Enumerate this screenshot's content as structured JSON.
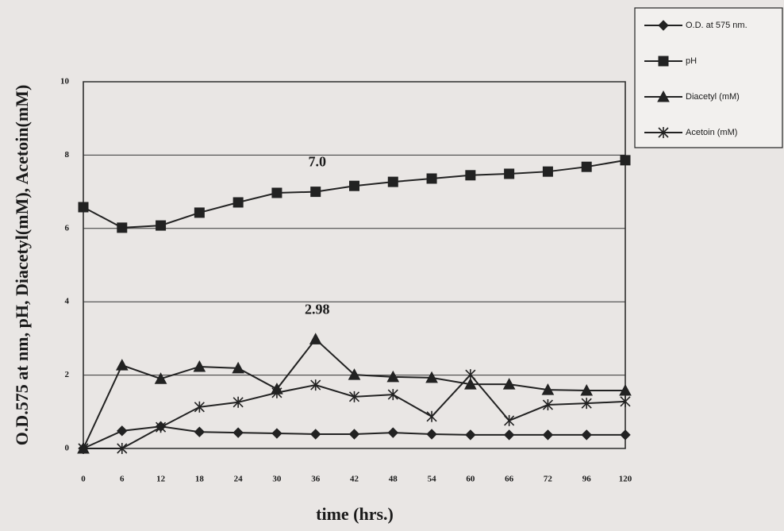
{
  "chart_data": {
    "type": "line",
    "x_label": "time (hrs.)",
    "y_label": "O.D.575 at nm, pH, Diacetyl(mM), Acetoin(mM)",
    "categories": [
      "0",
      "6",
      "12",
      "18",
      "24",
      "30",
      "36",
      "42",
      "48",
      "54",
      "60",
      "66",
      "72",
      "96",
      "120"
    ],
    "ylim": [
      0,
      10
    ],
    "yticks": [
      0,
      2,
      4,
      6,
      8,
      10
    ],
    "grid": true,
    "series": [
      {
        "name": "O.D. at 575 nm.",
        "color": "#222222",
        "marker": "diamond",
        "values": [
          0,
          0.48,
          0.6,
          0.45,
          0.43,
          0.41,
          0.39,
          0.39,
          0.43,
          0.39,
          0.37,
          0.37,
          0.37,
          0.37,
          0.37
        ]
      },
      {
        "name": "pH",
        "color": "#222222",
        "marker": "square",
        "values": [
          6.58,
          6.02,
          6.08,
          6.43,
          6.71,
          6.97,
          7.0,
          7.16,
          7.27,
          7.36,
          7.45,
          7.49,
          7.55,
          7.68,
          7.86
        ],
        "value_labels": [
          null,
          null,
          null,
          null,
          null,
          null,
          "7.0",
          null,
          null,
          null,
          null,
          null,
          null,
          null,
          null
        ]
      },
      {
        "name": "Diacetyl (mM)",
        "color": "#222222",
        "marker": "triangle",
        "values": [
          0,
          2.27,
          1.9,
          2.23,
          2.19,
          1.62,
          2.98,
          2.01,
          1.95,
          1.93,
          1.75,
          1.75,
          1.6,
          1.58,
          1.58
        ],
        "value_labels": [
          null,
          null,
          null,
          null,
          null,
          null,
          "2.98",
          null,
          null,
          null,
          null,
          null,
          null,
          null,
          null
        ]
      },
      {
        "name": "Acetoin (mM)",
        "color": "#222222",
        "marker": "asterisk",
        "values": [
          0,
          0,
          0.58,
          1.13,
          1.26,
          1.52,
          1.73,
          1.41,
          1.47,
          0.87,
          2.01,
          0.76,
          1.19,
          1.23,
          1.28
        ]
      }
    ]
  }
}
